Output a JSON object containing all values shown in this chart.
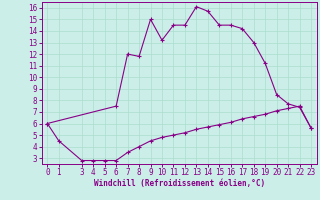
{
  "xlabel": "Windchill (Refroidissement éolien,°C)",
  "background_color": "#cceee8",
  "line_color": "#880088",
  "grid_color": "#aaddcc",
  "marker": "+",
  "xlim": [
    -0.5,
    23.5
  ],
  "ylim": [
    2.5,
    16.5
  ],
  "xticks": [
    0,
    1,
    3,
    4,
    5,
    6,
    7,
    8,
    9,
    10,
    11,
    12,
    13,
    14,
    15,
    16,
    17,
    18,
    19,
    20,
    21,
    22,
    23
  ],
  "yticks": [
    3,
    4,
    5,
    6,
    7,
    8,
    9,
    10,
    11,
    12,
    13,
    14,
    15,
    16
  ],
  "curve1_x": [
    0,
    1,
    3,
    4,
    5,
    6,
    7,
    8,
    9,
    10,
    11,
    12,
    13,
    14,
    15,
    16,
    17,
    18,
    19,
    20,
    21,
    22,
    23
  ],
  "curve1_y": [
    6.0,
    4.5,
    2.8,
    2.8,
    2.8,
    2.8,
    3.5,
    4.0,
    4.5,
    4.8,
    5.0,
    5.2,
    5.5,
    5.7,
    5.9,
    6.1,
    6.4,
    6.6,
    6.8,
    7.1,
    7.3,
    7.5,
    5.6
  ],
  "curve2_x": [
    0,
    6,
    7,
    8,
    9,
    10,
    11,
    12,
    13,
    14,
    15,
    16,
    17,
    18,
    19,
    20,
    21,
    22,
    23
  ],
  "curve2_y": [
    6.0,
    7.5,
    12.0,
    11.8,
    15.0,
    13.2,
    14.5,
    14.5,
    16.1,
    15.7,
    14.5,
    14.5,
    14.2,
    13.0,
    11.2,
    8.5,
    7.7,
    7.4,
    5.6
  ],
  "tick_fontsize": 5.5,
  "xlabel_fontsize": 5.5
}
